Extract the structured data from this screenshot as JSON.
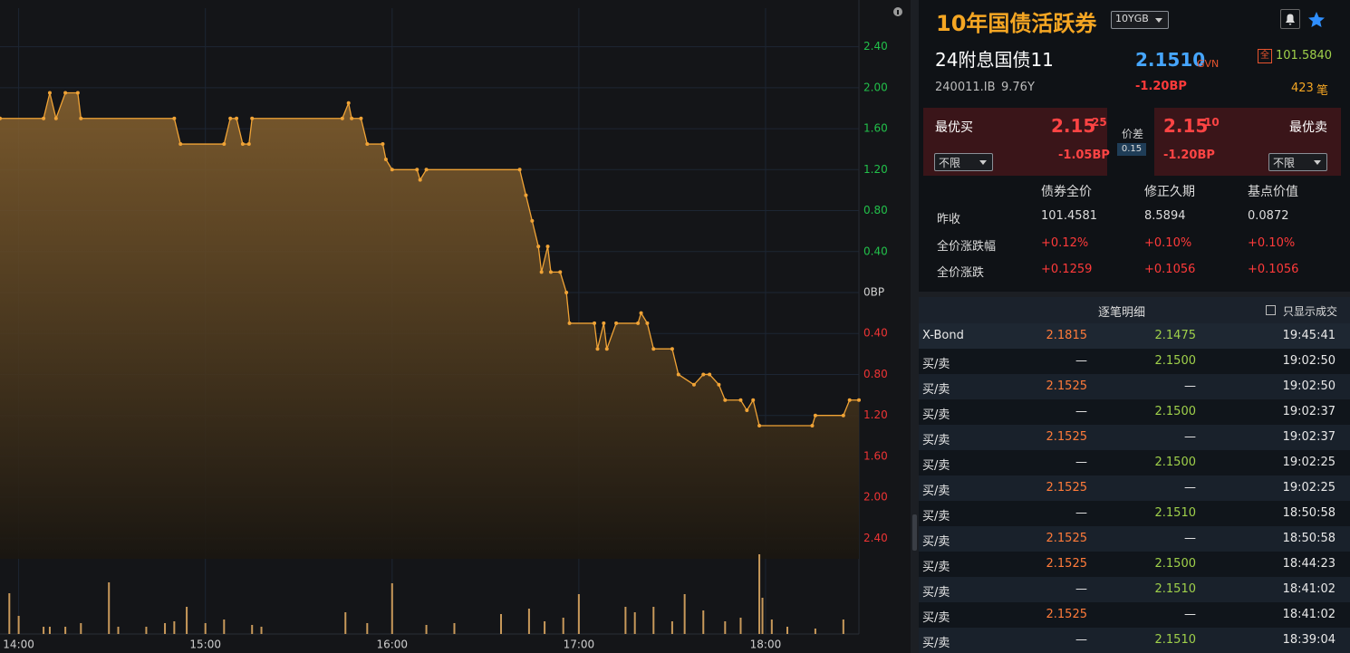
{
  "chart_data": {
    "type": "line",
    "series": [
      {
        "name": "10YGB",
        "color": "#f0a336",
        "x": [
          "13:54",
          "14:08",
          "14:10",
          "14:12",
          "14:15",
          "14:19",
          "14:20",
          "14:50",
          "14:52",
          "15:06",
          "15:08",
          "15:10",
          "15:12",
          "15:14",
          "15:15",
          "15:44",
          "15:46",
          "15:47",
          "15:50",
          "15:52",
          "15:57",
          "15:58",
          "16:00",
          "16:08",
          "16:09",
          "16:11",
          "16:41",
          "16:43",
          "16:45",
          "16:47",
          "16:48",
          "16:50",
          "16:51",
          "16:54",
          "16:56",
          "16:57",
          "17:05",
          "17:06",
          "17:08",
          "17:09",
          "17:12",
          "17:19",
          "17:20",
          "17:22",
          "17:24",
          "17:30",
          "17:32",
          "17:37",
          "17:40",
          "17:42",
          "17:45",
          "17:47",
          "17:52",
          "17:54",
          "17:56",
          "17:58",
          "18:15",
          "18:16",
          "18:25",
          "18:27",
          "18:30"
        ],
        "values": [
          1.7,
          1.7,
          1.95,
          1.7,
          1.95,
          1.95,
          1.7,
          1.7,
          1.45,
          1.45,
          1.7,
          1.7,
          1.45,
          1.45,
          1.7,
          1.7,
          1.85,
          1.7,
          1.7,
          1.45,
          1.45,
          1.3,
          1.2,
          1.2,
          1.1,
          1.2,
          1.2,
          0.95,
          0.7,
          0.45,
          0.2,
          0.45,
          0.2,
          0.2,
          0,
          -0.3,
          -0.3,
          -0.55,
          -0.3,
          -0.55,
          -0.3,
          -0.3,
          -0.2,
          -0.3,
          -0.55,
          -0.55,
          -0.8,
          -0.9,
          -0.8,
          -0.8,
          -0.9,
          -1.05,
          -1.05,
          -1.15,
          -1.05,
          -1.3,
          -1.3,
          -1.2,
          -1.2,
          -1.05,
          -1.05
        ]
      }
    ],
    "volume": {
      "color": "#c8995a",
      "x": [
        "13:57",
        "14:00",
        "14:08",
        "14:10",
        "14:15",
        "14:20",
        "14:29",
        "14:32",
        "14:41",
        "14:47",
        "14:50",
        "14:54",
        "15:00",
        "15:06",
        "15:15",
        "15:18",
        "15:45",
        "15:52",
        "16:00",
        "16:11",
        "16:20",
        "16:35",
        "16:44",
        "16:49",
        "16:55",
        "17:00",
        "17:15",
        "17:18",
        "17:24",
        "17:30",
        "17:34",
        "17:40",
        "17:47",
        "17:52",
        "17:58",
        "17:59",
        "18:02",
        "18:07",
        "18:16",
        "18:25"
      ],
      "values": [
        45,
        20,
        8,
        8,
        8,
        12,
        57,
        8,
        8,
        12,
        14,
        30,
        12,
        16,
        10,
        8,
        24,
        12,
        56,
        10,
        12,
        22,
        28,
        14,
        18,
        44,
        30,
        24,
        30,
        14,
        44,
        26,
        14,
        18,
        88,
        40,
        16,
        8,
        6,
        16
      ]
    },
    "xlim": [
      "13:54",
      "18:30"
    ],
    "xticks": [
      "14:00",
      "15:00",
      "16:00",
      "17:00",
      "18:00"
    ],
    "ylim": [
      -2.6,
      2.6
    ],
    "yticks": [
      {
        "value": 2.4,
        "label": "2.40"
      },
      {
        "value": 2.0,
        "label": "2.00"
      },
      {
        "value": 1.6,
        "label": "1.60"
      },
      {
        "value": 1.2,
        "label": "1.20"
      },
      {
        "value": 0.8,
        "label": "0.80"
      },
      {
        "value": 0.4,
        "label": "0.40"
      },
      {
        "value": 0,
        "label": "0BP"
      },
      {
        "value": -0.4,
        "label": "0.40"
      },
      {
        "value": -0.8,
        "label": "0.80"
      },
      {
        "value": -1.2,
        "label": "1.20"
      },
      {
        "value": -1.6,
        "label": "1.60"
      },
      {
        "value": -2.0,
        "label": "2.00"
      },
      {
        "value": -2.4,
        "label": "2.40"
      }
    ],
    "up_color": "#22c04a",
    "down_color": "#ee3434",
    "zero_color": "#d0d0d0",
    "grid": true
  },
  "header": {
    "title": "10年国债活跃券",
    "selector": "10YGB"
  },
  "quote": {
    "name": "24附息国债11",
    "code": "240011.IB",
    "term": "9.76Y",
    "yield": "2.1510",
    "source": "GVN",
    "change": "-1.20BP",
    "badge": "全",
    "price": "101.5840",
    "count": "423",
    "count_unit": "笔"
  },
  "depth": {
    "bid": {
      "label": "最优买",
      "yield": "2.15",
      "sub": "25",
      "change": "-1.05BP",
      "filter": "不限"
    },
    "spread": {
      "label": "价差",
      "value": "0.15"
    },
    "ask": {
      "label": "最优卖",
      "yield": "2.15",
      "sub": "10",
      "change": "-1.20BP",
      "filter": "不限"
    }
  },
  "stats": {
    "columns": [
      "债券全价",
      "修正久期",
      "基点价值"
    ],
    "rows": [
      [
        "昨收",
        "101.4581",
        "8.5894",
        "0.0872"
      ],
      [
        "全价涨跌幅",
        "+0.12%",
        "+0.10%",
        "+0.10%"
      ],
      [
        "全价涨跌",
        "+0.1259",
        "+0.1056",
        "+0.1056"
      ]
    ]
  },
  "trades": {
    "title": "逐笔明细",
    "filter": "只显示成交",
    "rows": [
      [
        "X-Bond",
        "2.1815",
        "2.1475",
        "19:45:41"
      ],
      [
        "买/卖",
        "—",
        "2.1500",
        "19:02:50"
      ],
      [
        "买/卖",
        "2.1525",
        "—",
        "19:02:50"
      ],
      [
        "买/卖",
        "—",
        "2.1500",
        "19:02:37"
      ],
      [
        "买/卖",
        "2.1525",
        "—",
        "19:02:37"
      ],
      [
        "买/卖",
        "—",
        "2.1500",
        "19:02:25"
      ],
      [
        "买/卖",
        "2.1525",
        "—",
        "19:02:25"
      ],
      [
        "买/卖",
        "—",
        "2.1510",
        "18:50:58"
      ],
      [
        "买/卖",
        "2.1525",
        "—",
        "18:50:58"
      ],
      [
        "买/卖",
        "2.1525",
        "2.1500",
        "18:44:23"
      ],
      [
        "买/卖",
        "—",
        "2.1510",
        "18:41:02"
      ],
      [
        "买/卖",
        "2.1525",
        "—",
        "18:41:02"
      ],
      [
        "买/卖",
        "—",
        "2.1510",
        "18:39:04"
      ]
    ]
  }
}
